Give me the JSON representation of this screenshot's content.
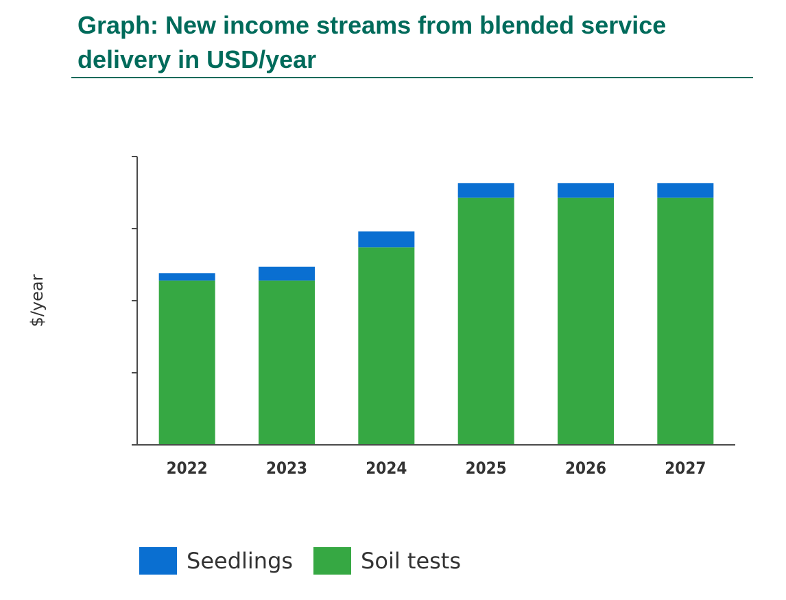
{
  "page": {
    "title": "Graph: New income streams from blended service delivery in USD/year"
  },
  "colors": {
    "title": "#006b5b",
    "seedlings": "#0a6fd1",
    "soil_tests": "#36a843",
    "axis": "#4a4a4a",
    "text": "#333333"
  },
  "chart_data": {
    "type": "bar",
    "stacked": true,
    "title": "Graph: New income streams from blended service delivery in USD/year",
    "xlabel": "",
    "ylabel": "$/year",
    "categories": [
      "2022",
      "2023",
      "2024",
      "2025",
      "2026",
      "2027"
    ],
    "series": [
      {
        "name": "Soil tests",
        "values": [
          2.28,
          2.28,
          2.74,
          3.43,
          3.43,
          3.43
        ]
      },
      {
        "name": "Seedlings",
        "values": [
          0.1,
          0.19,
          0.22,
          0.2,
          0.2,
          0.2
        ]
      }
    ],
    "ylim": [
      0,
      4
    ],
    "yticks": [
      0,
      1,
      2,
      3,
      4
    ],
    "ytick_labels_visible": false,
    "grid": false,
    "legend": {
      "position": "bottom-left",
      "entries": [
        "Seedlings",
        "Soil tests"
      ]
    }
  }
}
